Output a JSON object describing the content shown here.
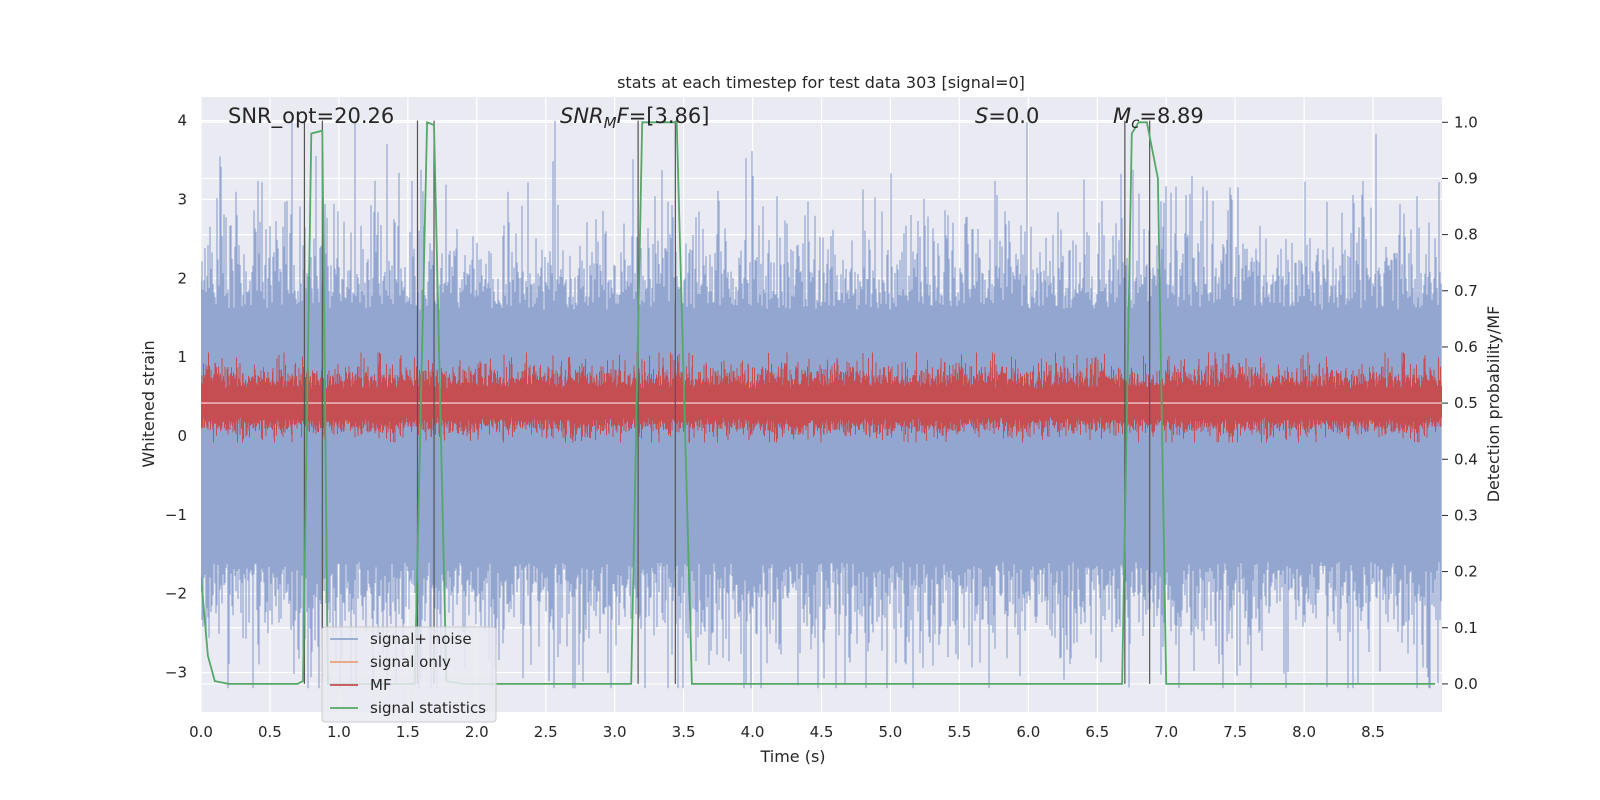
{
  "chart_data": {
    "type": "line",
    "title": "stats at each timestep for test data 303 [signal=0]",
    "xlabel": "Time (s)",
    "ylabel": "Whitened strain",
    "ylabel_right": "Detection probability/MF",
    "xlim": [
      0.0,
      9.0
    ],
    "ylim": [
      -3.5,
      4.3
    ],
    "ylim_right": [
      -0.05,
      1.045
    ],
    "xticks": [
      "0.0",
      "0.5",
      "1.0",
      "1.5",
      "2.0",
      "2.5",
      "3.0",
      "3.5",
      "4.0",
      "4.5",
      "5.0",
      "5.5",
      "6.0",
      "6.5",
      "7.0",
      "7.5",
      "8.0",
      "8.5"
    ],
    "yticks": [
      "−3",
      "−2",
      "−1",
      "0",
      "1",
      "2",
      "3",
      "4"
    ],
    "yticks_right": [
      "0.0",
      "0.1",
      "0.2",
      "0.3",
      "0.4",
      "0.5",
      "0.6",
      "0.7",
      "0.8",
      "0.9",
      "1.0"
    ],
    "grid": true,
    "legend_position": "lower-left",
    "annotations": [
      {
        "id": "snr_opt",
        "text": "SNR_opt=20.26"
      },
      {
        "id": "snr_mf",
        "base": "SNR",
        "sub": "M",
        "rest": "F=[3.86]"
      },
      {
        "id": "s",
        "base": "S",
        "rest": "=0.0"
      },
      {
        "id": "mc",
        "base": "M",
        "sub": "c",
        "rest": "=8.89"
      }
    ],
    "series": [
      {
        "name": "signal+ noise",
        "color": "#92a6d0",
        "axis": "left",
        "description": "whitened noise, roughly Gaussian, envelope about -3.2 to 3.9",
        "envelope_typical": [
          -1.8,
          1.8
        ],
        "max": 4.0,
        "min": -3.2
      },
      {
        "name": "signal only",
        "color": "#e8a07c",
        "axis": "left",
        "values": "flat at 0 (no signal)"
      },
      {
        "name": "MF",
        "color": "#c44e52",
        "axis": "right",
        "baseline": 0.5,
        "range": [
          0.43,
          0.59
        ]
      },
      {
        "name": "signal statistics",
        "color": "#55a868",
        "axis": "right",
        "points": [
          [
            0.0,
            0.19
          ],
          [
            0.05,
            0.05
          ],
          [
            0.1,
            0.005
          ],
          [
            0.2,
            0.0
          ],
          [
            0.7,
            0.0
          ],
          [
            0.74,
            0.005
          ],
          [
            0.8,
            0.98
          ],
          [
            0.88,
            0.985
          ],
          [
            0.92,
            0.0
          ],
          [
            0.95,
            0.0
          ],
          [
            1.55,
            0.0
          ],
          [
            1.64,
            1.0
          ],
          [
            1.69,
            0.995
          ],
          [
            1.78,
            0.005
          ],
          [
            1.9,
            0.0
          ],
          [
            3.12,
            0.0
          ],
          [
            3.2,
            1.0
          ],
          [
            3.45,
            1.0
          ],
          [
            3.56,
            0.0
          ],
          [
            6.68,
            0.0
          ],
          [
            6.75,
            0.98
          ],
          [
            6.8,
            1.0
          ],
          [
            6.86,
            1.0
          ],
          [
            6.94,
            0.9
          ],
          [
            7.0,
            0.0
          ],
          [
            8.95,
            0.0
          ]
        ]
      }
    ],
    "vertical_lines": [
      0.75,
      0.88,
      1.57,
      1.69,
      3.17,
      3.44,
      6.7,
      6.88
    ]
  }
}
